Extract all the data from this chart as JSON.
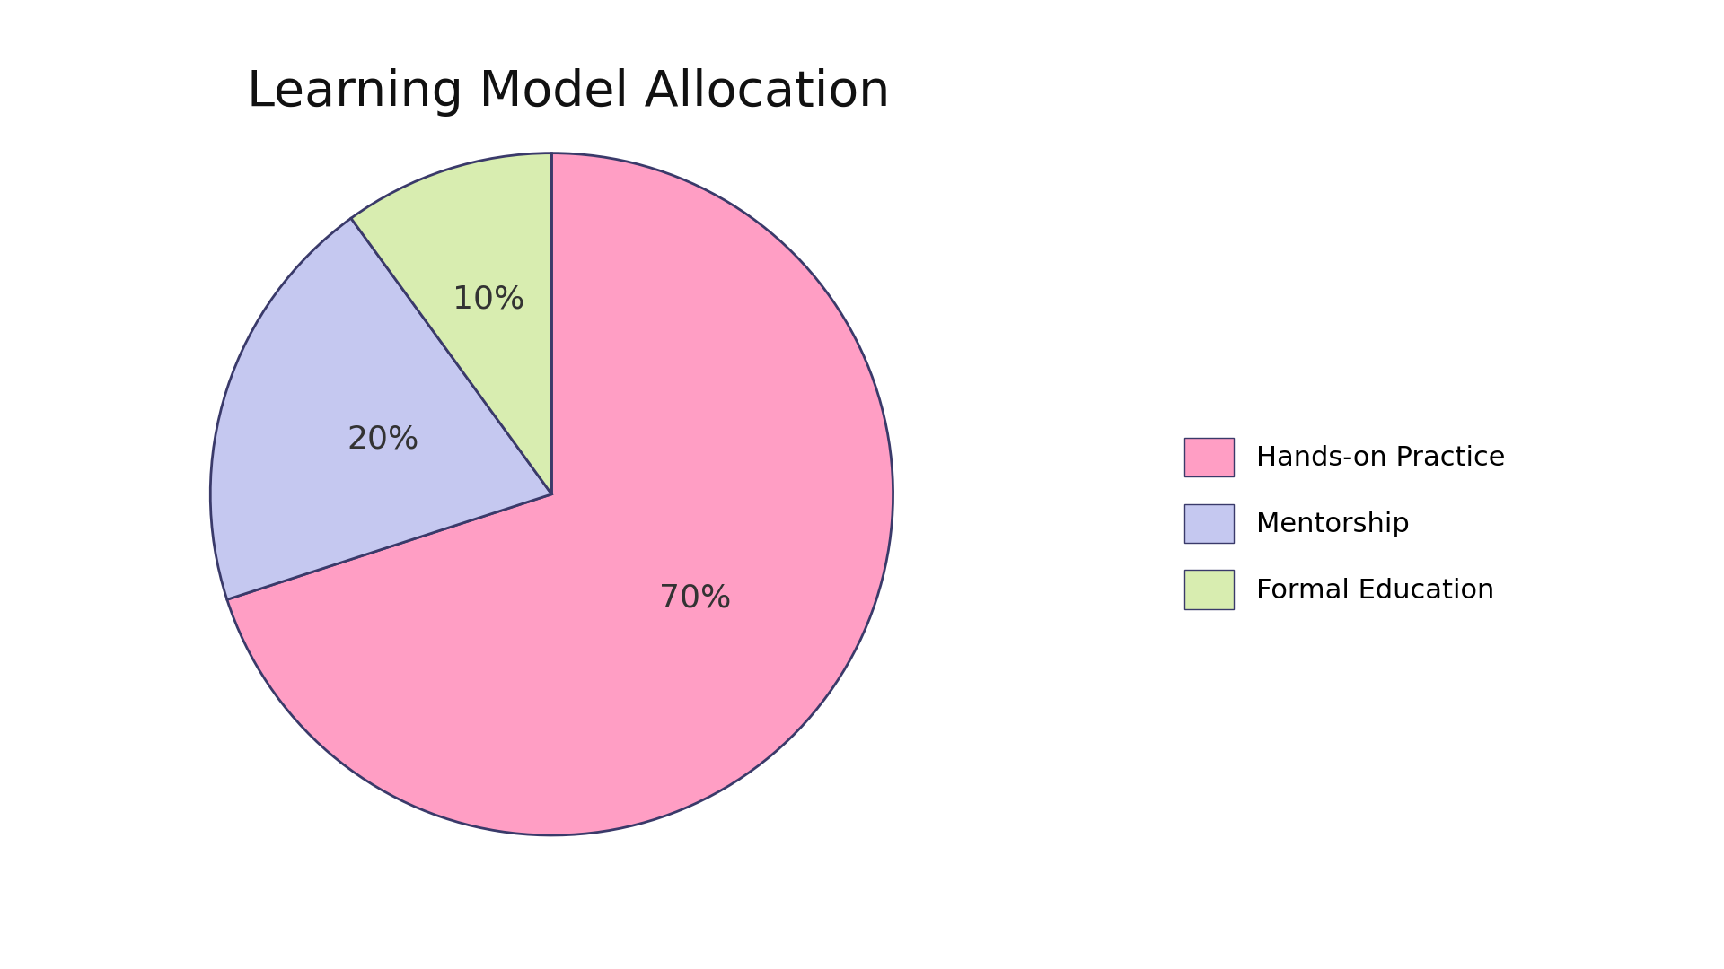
{
  "title": "Learning Model Allocation",
  "slices": [
    70,
    20,
    10
  ],
  "labels": [
    "Hands-on Practice",
    "Mentorship",
    "Formal Education"
  ],
  "pct_labels": [
    "70%",
    "20%",
    "10%"
  ],
  "colors": [
    "#FF9EC4",
    "#C5C8F0",
    "#D8EDB0"
  ],
  "edge_color": "#3A3A6A",
  "edge_width": 2.0,
  "startangle": 90,
  "background_color": "#FFFFFF",
  "title_fontsize": 40,
  "pct_fontsize": 26,
  "legend_fontsize": 22,
  "title_color": "#111111"
}
